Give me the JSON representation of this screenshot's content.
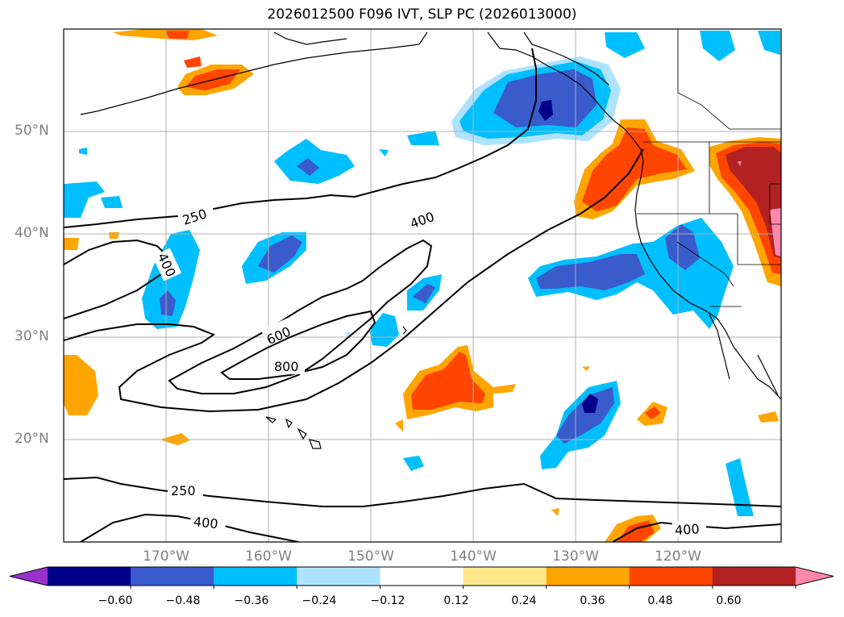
{
  "title": "2026012500 F096 IVT, SLP PC (2026013000)",
  "map": {
    "projection": "lat/lon",
    "lat_range": [
      10,
      60
    ],
    "lon_range": [
      -180,
      -110
    ],
    "lat_ticks": [
      {
        "value": 50,
        "label": "50°N"
      },
      {
        "value": 40,
        "label": "40°N"
      },
      {
        "value": 30,
        "label": "30°N"
      },
      {
        "value": 20,
        "label": "20°N"
      }
    ],
    "lon_ticks": [
      {
        "value": -170,
        "label": "170°W"
      },
      {
        "value": -160,
        "label": "160°W"
      },
      {
        "value": -150,
        "label": "150°W"
      },
      {
        "value": -140,
        "label": "140°W"
      },
      {
        "value": -130,
        "label": "130°W"
      },
      {
        "value": -120,
        "label": "120°W"
      }
    ],
    "contour_labels": [
      "250",
      "400",
      "400",
      "600",
      "800",
      "250",
      "400",
      "400"
    ]
  },
  "colorbar": {
    "colors": [
      "#9932cc",
      "#00008b",
      "#3a5bcc",
      "#00bfff",
      "#aee3ff",
      "#ffffff",
      "#ffe98c",
      "#ffa500",
      "#ff4500",
      "#b22222",
      "#ff88aa"
    ],
    "ticks": [
      "−0.60",
      "−0.48",
      "−0.36",
      "−0.24",
      "−0.12",
      "0.12",
      "0.24",
      "0.36",
      "0.48",
      "0.60"
    ]
  }
}
